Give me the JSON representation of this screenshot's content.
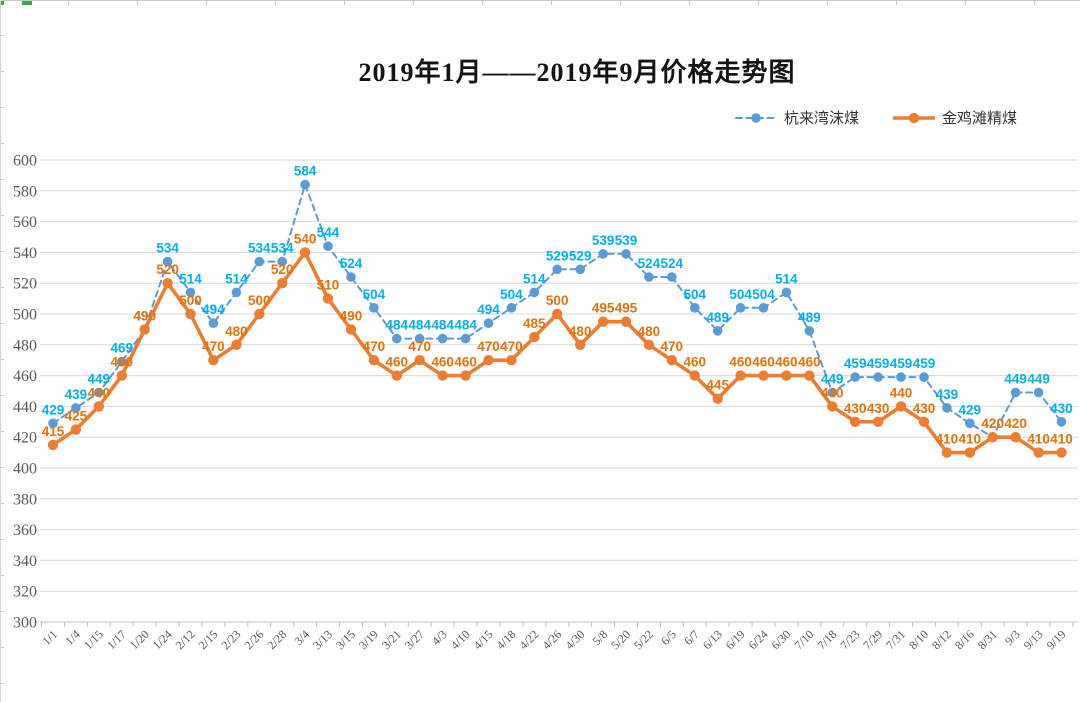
{
  "window": {
    "background": "#ffffff",
    "edge_tick_color": "#c9c9c9",
    "edge_handle_color": "#3fa845"
  },
  "chart_data": {
    "type": "line",
    "title": "2019年1月——2019年9月价格走势图",
    "categories": [
      "1/1",
      "1/4",
      "1/15",
      "1/17",
      "1/20",
      "1/24",
      "2/12",
      "2/15",
      "2/23",
      "2/26",
      "2/28",
      "3/4",
      "3/13",
      "3/15",
      "3/19",
      "3/21",
      "3/27",
      "4/3",
      "4/10",
      "4/15",
      "4/18",
      "4/22",
      "4/26",
      "4/30",
      "5/8",
      "5/20",
      "5/22",
      "6/5",
      "6/7",
      "6/13",
      "6/19",
      "6/24",
      "6/30",
      "7/10",
      "7/18",
      "7/23",
      "7/29",
      "7/31",
      "8/10",
      "8/12",
      "8/16",
      "8/31",
      "9/3",
      "9/13",
      "9/19"
    ],
    "series": [
      {
        "name": "杭来湾沫煤",
        "style": "dashed",
        "line_color": "#5B9BD5",
        "label_color": "#00B0F0",
        "values": [
          429,
          439,
          449,
          469,
          490,
          534,
          514,
          494,
          514,
          534,
          534,
          584,
          544,
          524,
          504,
          484,
          484,
          484,
          484,
          494,
          504,
          514,
          529,
          529,
          539,
          539,
          524,
          524,
          504,
          489,
          504,
          504,
          514,
          489,
          449,
          459,
          459,
          459,
          459,
          439,
          429,
          420,
          449,
          449,
          430
        ]
      },
      {
        "name": "金鸡滩精煤",
        "style": "solid",
        "line_color": "#ED7D31",
        "label_color": "#E8710A",
        "values": [
          415,
          425,
          440,
          460,
          490,
          520,
          500,
          470,
          480,
          500,
          520,
          540,
          510,
          490,
          470,
          460,
          470,
          460,
          460,
          470,
          470,
          485,
          500,
          480,
          495,
          495,
          480,
          470,
          460,
          445,
          460,
          460,
          460,
          460,
          440,
          430,
          430,
          440,
          430,
          410,
          410,
          420,
          420,
          410,
          410
        ]
      }
    ],
    "ylim": [
      300,
      600
    ],
    "ytick_step": 20,
    "grid": "horizontal",
    "grid_color": "#D9D9D9",
    "axis_line_color": "#BFBFBF",
    "axis_text_color": "#595959",
    "legend_position": "top-right",
    "data_labels": true
  }
}
